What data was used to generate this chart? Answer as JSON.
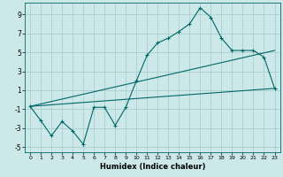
{
  "xlabel": "Humidex (Indice chaleur)",
  "background_color": "#cce8e8",
  "grid_color": "#aacfcf",
  "line_color": "#006868",
  "xlim": [
    -0.5,
    23.5
  ],
  "ylim": [
    -5.5,
    10.2
  ],
  "yticks": [
    -5,
    -3,
    -1,
    1,
    3,
    5,
    7,
    9
  ],
  "xticks": [
    0,
    1,
    2,
    3,
    4,
    5,
    6,
    7,
    8,
    9,
    10,
    11,
    12,
    13,
    14,
    15,
    16,
    17,
    18,
    19,
    20,
    21,
    22,
    23
  ],
  "series1_x": [
    0,
    1,
    2,
    3,
    4,
    5,
    6,
    7,
    8,
    9,
    10,
    11,
    12,
    13,
    14,
    15,
    16,
    17,
    18,
    19,
    20,
    21,
    22,
    23
  ],
  "series1_y": [
    -0.7,
    -2.2,
    -3.8,
    -2.3,
    -3.3,
    -4.7,
    -0.8,
    -0.8,
    -2.7,
    -0.8,
    2.0,
    4.7,
    6.0,
    6.5,
    7.2,
    8.0,
    9.7,
    8.7,
    6.5,
    5.2,
    5.2,
    5.2,
    4.5,
    1.2
  ],
  "series2_x": [
    0,
    23
  ],
  "series2_y": [
    -0.7,
    1.2
  ],
  "series3_x": [
    0,
    23
  ],
  "series3_y": [
    -0.7,
    5.2
  ]
}
